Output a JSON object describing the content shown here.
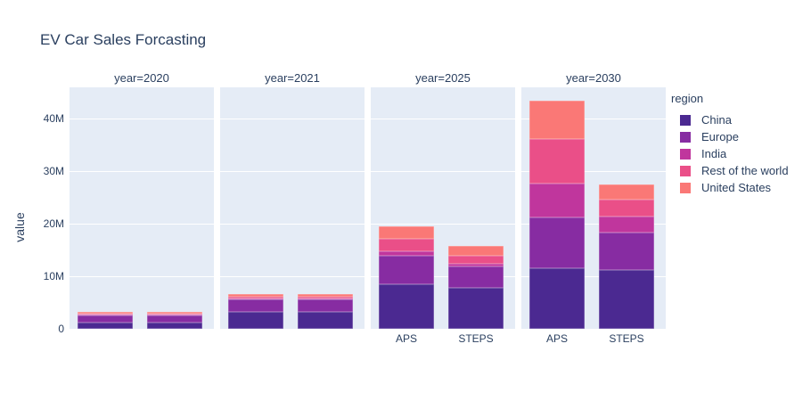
{
  "chart_data": {
    "type": "bar",
    "mode": "stacked",
    "title": "EV Car Sales Forcasting",
    "xlabel": "",
    "ylabel": "value",
    "values_unit": "millions",
    "ylim": [
      0,
      45.9
    ],
    "grid": true,
    "legend_position": "right",
    "legend_title": "region",
    "yticks": [
      {
        "value": 0,
        "label": "0"
      },
      {
        "value": 10,
        "label": "10M"
      },
      {
        "value": 20,
        "label": "20M"
      },
      {
        "value": 30,
        "label": "30M"
      },
      {
        "value": 40,
        "label": "40M"
      }
    ],
    "regions": [
      {
        "name": "China",
        "color": "#4b2991"
      },
      {
        "name": "Europe",
        "color": "#872ca2"
      },
      {
        "name": "India",
        "color": "#c0369d"
      },
      {
        "name": "Rest of the world",
        "color": "#ea4f88"
      },
      {
        "name": "United States",
        "color": "#fa7876"
      }
    ],
    "facets": [
      {
        "title": "year=2020",
        "bars": [
          {
            "x_label": "",
            "values": [
              1.2,
              1.4,
              0.1,
              0.2,
              0.3
            ]
          },
          {
            "x_label": "",
            "values": [
              1.2,
              1.4,
              0.1,
              0.2,
              0.3
            ]
          }
        ]
      },
      {
        "title": "year=2021",
        "bars": [
          {
            "x_label": "",
            "values": [
              3.3,
              2.3,
              0.1,
              0.35,
              0.6
            ]
          },
          {
            "x_label": "",
            "values": [
              3.3,
              2.3,
              0.1,
              0.35,
              0.6
            ]
          }
        ]
      },
      {
        "title": "year=2025",
        "bars": [
          {
            "x_label": "APS",
            "values": [
              8.5,
              5.4,
              0.8,
              2.4,
              2.4
            ]
          },
          {
            "x_label": "STEPS",
            "values": [
              7.8,
              4.0,
              0.5,
              1.6,
              1.8
            ]
          }
        ]
      },
      {
        "title": "year=2030",
        "bars": [
          {
            "x_label": "APS",
            "values": [
              11.5,
              9.7,
              6.4,
              8.4,
              7.4
            ]
          },
          {
            "x_label": "STEPS",
            "values": [
              11.2,
              7.1,
              3.0,
              3.2,
              3.0
            ]
          }
        ]
      }
    ]
  },
  "colors": {
    "text": "#2a3f5f",
    "panel_background": "#e5ecf6",
    "gridline": "#ffffff",
    "page_background": "#ffffff"
  }
}
